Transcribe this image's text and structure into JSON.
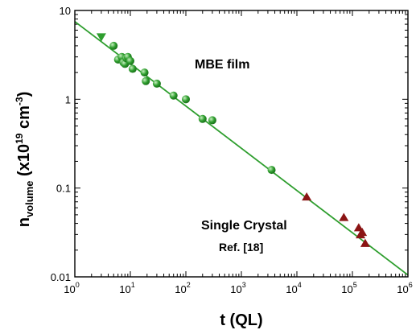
{
  "chart_data": {
    "type": "scatter",
    "xlabel": {
      "main": "t (QL)"
    },
    "ylabel": {
      "main": "n",
      "subscript": "volume",
      "unit_open": " (x10",
      "unit_exp": "19",
      "unit_mid": " cm",
      "unit_exp2": "-3",
      "unit_close": ")"
    },
    "x_scale": "log",
    "y_scale": "log",
    "xlim": [
      1,
      1000000
    ],
    "ylim": [
      0.01,
      10
    ],
    "x_ticks": [
      {
        "base": "10",
        "exp": "0",
        "value": 1
      },
      {
        "base": "10",
        "exp": "1",
        "value": 10
      },
      {
        "base": "10",
        "exp": "2",
        "value": 100
      },
      {
        "base": "10",
        "exp": "3",
        "value": 1000
      },
      {
        "base": "10",
        "exp": "4",
        "value": 10000
      },
      {
        "base": "10",
        "exp": "5",
        "value": 100000
      },
      {
        "base": "10",
        "exp": "6",
        "value": 1000000
      }
    ],
    "y_ticks": [
      {
        "label": "10",
        "value": 10
      },
      {
        "label": "1",
        "value": 1
      },
      {
        "label": "0.1",
        "value": 0.1
      },
      {
        "label": "0.01",
        "value": 0.01
      }
    ],
    "annotations": [
      {
        "text": "MBE film",
        "color": "#1e8a1e"
      },
      {
        "text": "Single Crystal",
        "color": "#8b1414"
      },
      {
        "text": "Ref. [18]",
        "color": "#8b1414"
      }
    ],
    "series": [
      {
        "marker": "circle",
        "color": "#2e9e2e",
        "points": [
          [
            5,
            4.0
          ],
          [
            6,
            2.8
          ],
          [
            7,
            3.0
          ],
          [
            7.5,
            2.6
          ],
          [
            8,
            2.5
          ],
          [
            8.5,
            2.9
          ],
          [
            9,
            3.0
          ],
          [
            10,
            2.7
          ],
          [
            11,
            2.2
          ],
          [
            18,
            2.0
          ],
          [
            19,
            1.6
          ],
          [
            30,
            1.5
          ],
          [
            60,
            1.1
          ],
          [
            100,
            1.0
          ],
          [
            200,
            0.6
          ],
          [
            300,
            0.58
          ],
          [
            3500,
            0.16
          ]
        ]
      },
      {
        "marker": "triangle-down",
        "color": "#2e9e2e",
        "points": [
          [
            3,
            5.0
          ]
        ]
      },
      {
        "marker": "triangle-up",
        "color": "#8b1414",
        "points": [
          [
            15000,
            0.08
          ],
          [
            70000,
            0.047
          ],
          [
            130000,
            0.036
          ],
          [
            140000,
            0.03
          ],
          [
            150000,
            0.032
          ],
          [
            170000,
            0.024
          ]
        ]
      }
    ],
    "fit_line": {
      "color": "#2e9e2e",
      "from": [
        1,
        7.5
      ],
      "to": [
        1000000,
        0.0105
      ]
    }
  }
}
